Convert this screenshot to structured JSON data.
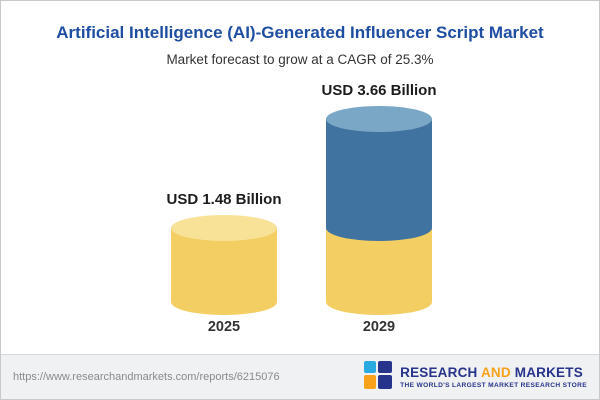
{
  "chart_data": {
    "type": "bar",
    "chart_style": "cylinder",
    "title": "Artificial Intelligence (AI)-Generated Influencer Script Market",
    "subtitle": "Market forecast to grow at a CAGR of 25.3%",
    "cagr_percent": 25.3,
    "unit": "USD Billion",
    "categories": [
      "2025",
      "2029"
    ],
    "values": [
      1.48,
      3.66
    ],
    "value_labels": [
      "USD 1.48 Billion",
      "USD 3.66 Billion"
    ],
    "stacking_note": "2029 bar shows 2025 base value in yellow with incremental growth in blue on top",
    "legend_position": "none",
    "grid": false,
    "colors": {
      "yellow": "#F3CE62",
      "yellow_light": "#F8E298",
      "blue": "#40739F",
      "blue_light": "#7BA7C7",
      "title_blue": "#1E4EA1",
      "brand_navy": "#27348B",
      "brand_orange": "#F7A21A"
    }
  },
  "footer": {
    "report_url": "https://www.researchandmarkets.com/reports/6215076",
    "logo": {
      "research": "RESEARCH",
      "and": "AND",
      "markets": "MARKETS",
      "tagline": "THE WORLD'S LARGEST MARKET RESEARCH STORE"
    }
  }
}
